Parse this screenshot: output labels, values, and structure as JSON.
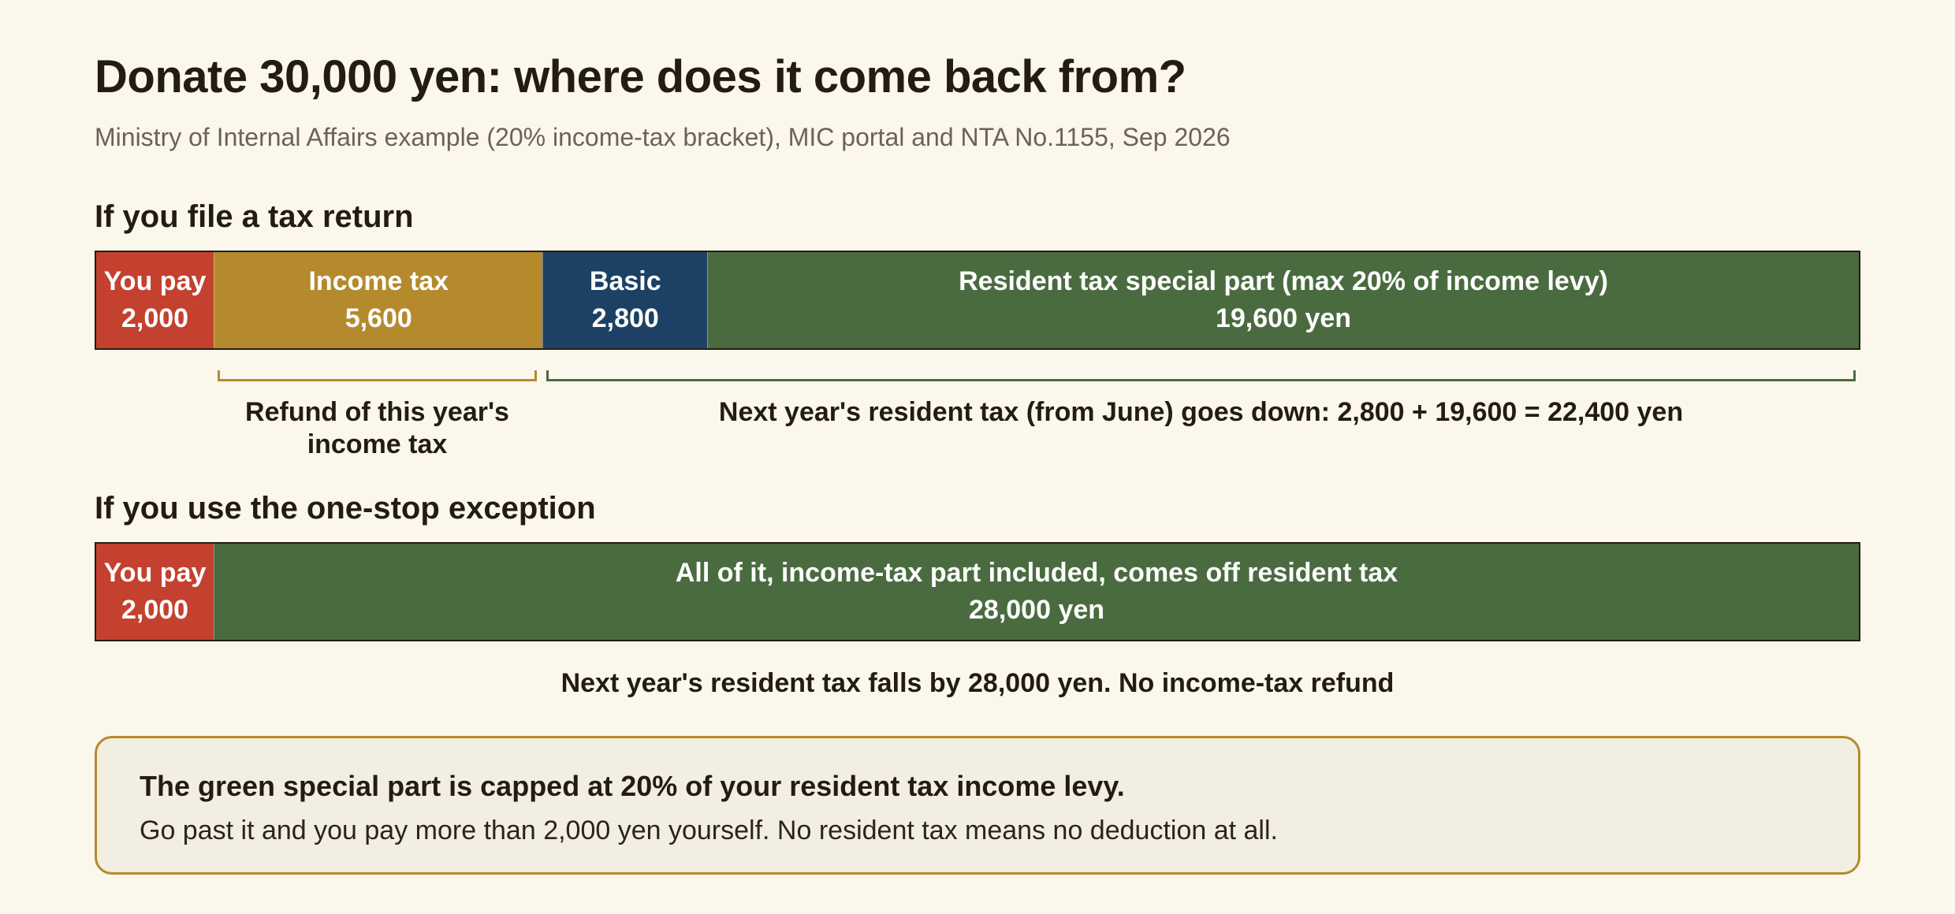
{
  "title": "Donate 30,000 yen: where does it come back from?",
  "subtitle": "Ministry of Internal Affairs example (20% income-tax bracket), MIC portal and NTA No.1155, Sep 2026",
  "colors": {
    "you_pay": "#c4402f",
    "income_tax": "#b48a2c",
    "basic": "#1c4165",
    "resident_special": "#4a6b40",
    "background": "#fbf7ec"
  },
  "filing": {
    "heading": "If you file a tax return",
    "segments": [
      {
        "key": "you_pay",
        "label": "You pay",
        "value_text": "2,000",
        "amount": 2000
      },
      {
        "key": "income_tax",
        "label": "Income tax",
        "value_text": "5,600",
        "amount": 5600
      },
      {
        "key": "basic",
        "label": "Basic",
        "value_text": "2,800",
        "amount": 2800
      },
      {
        "key": "resident_special",
        "label": "Resident tax special part (max 20% of income levy)",
        "value_text": "19,600 yen",
        "amount": 19600
      }
    ],
    "refund_note": "Refund of this year's income tax",
    "resident_note": "Next year's resident tax (from June) goes down: 2,800 + 19,600 = 22,400 yen"
  },
  "onestop": {
    "heading": "If you use the one-stop exception",
    "segments": [
      {
        "key": "you_pay",
        "label": "You pay",
        "value_text": "2,000",
        "amount": 2000
      },
      {
        "key": "resident_special",
        "label": "All of it, income-tax part included, comes off resident tax",
        "value_text": "28,000 yen",
        "amount": 28000
      }
    ],
    "note": "Next year's resident tax falls by 28,000 yen. No income-tax refund"
  },
  "callout": {
    "headline": "The green special part is capped at 20% of your resident tax income levy.",
    "body": "Go past it and you pay more than 2,000 yen yourself. No resident tax means no deduction at all."
  }
}
